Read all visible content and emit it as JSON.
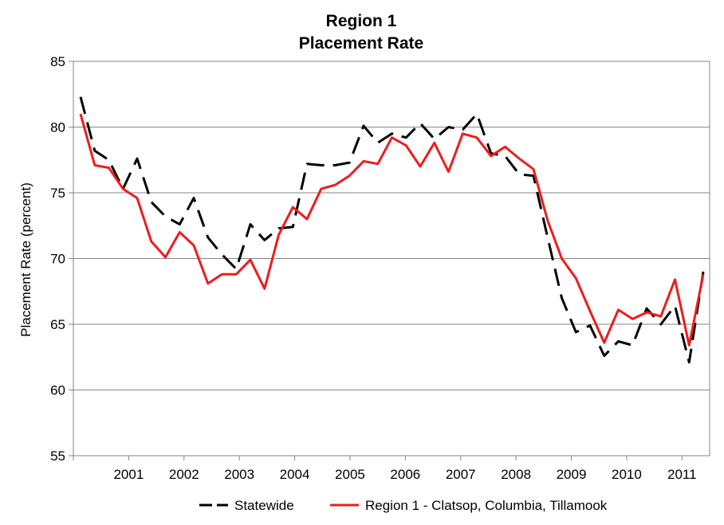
{
  "chart_data": {
    "type": "line",
    "title": "Region 1",
    "subtitle": "Placement Rate",
    "ylabel": "Placement Rate (percent)",
    "xlabel": "",
    "ylim": [
      55,
      85
    ],
    "yticks": [
      "55",
      "60",
      "65",
      "70",
      "75",
      "80",
      "85"
    ],
    "years": [
      "2001",
      "2002",
      "2003",
      "2004",
      "2005",
      "2006",
      "2007",
      "2008",
      "2009",
      "2010",
      "2011"
    ],
    "grid": true,
    "legend_position": "bottom",
    "series": [
      {
        "name": "Statewide",
        "color": "#000000",
        "style": "dashed",
        "values": [
          82.3,
          78.2,
          77.5,
          75.3,
          77.6,
          74.3,
          73.2,
          72.6,
          74.6,
          71.6,
          70.3,
          69.2,
          72.6,
          71.4,
          72.3,
          72.4,
          77.2,
          77.1,
          77.1,
          77.3,
          80.1,
          78.8,
          79.5,
          79.2,
          80.3,
          79.1,
          80.0,
          79.8,
          81.0,
          78.0,
          77.8,
          76.4,
          76.3,
          71.6,
          67.0,
          64.4,
          64.9,
          62.6,
          63.7,
          63.4,
          66.2,
          65.0,
          66.4,
          62.1,
          69.0
        ]
      },
      {
        "name": "Region 1 - Clatsop, Columbia, Tillamook",
        "color": "#ee1c1c",
        "style": "solid",
        "values": [
          81.0,
          77.1,
          76.9,
          75.3,
          74.6,
          71.3,
          70.1,
          72.0,
          71.0,
          68.1,
          68.8,
          68.8,
          69.9,
          67.7,
          71.8,
          73.9,
          73.0,
          75.3,
          75.6,
          76.3,
          77.4,
          77.2,
          79.2,
          78.6,
          77.0,
          78.8,
          76.6,
          79.5,
          79.2,
          77.8,
          78.5,
          77.6,
          76.8,
          72.9,
          70.0,
          68.5,
          66.0,
          63.6,
          66.1,
          65.4,
          65.9,
          65.6,
          68.4,
          63.4,
          68.8
        ]
      }
    ]
  }
}
